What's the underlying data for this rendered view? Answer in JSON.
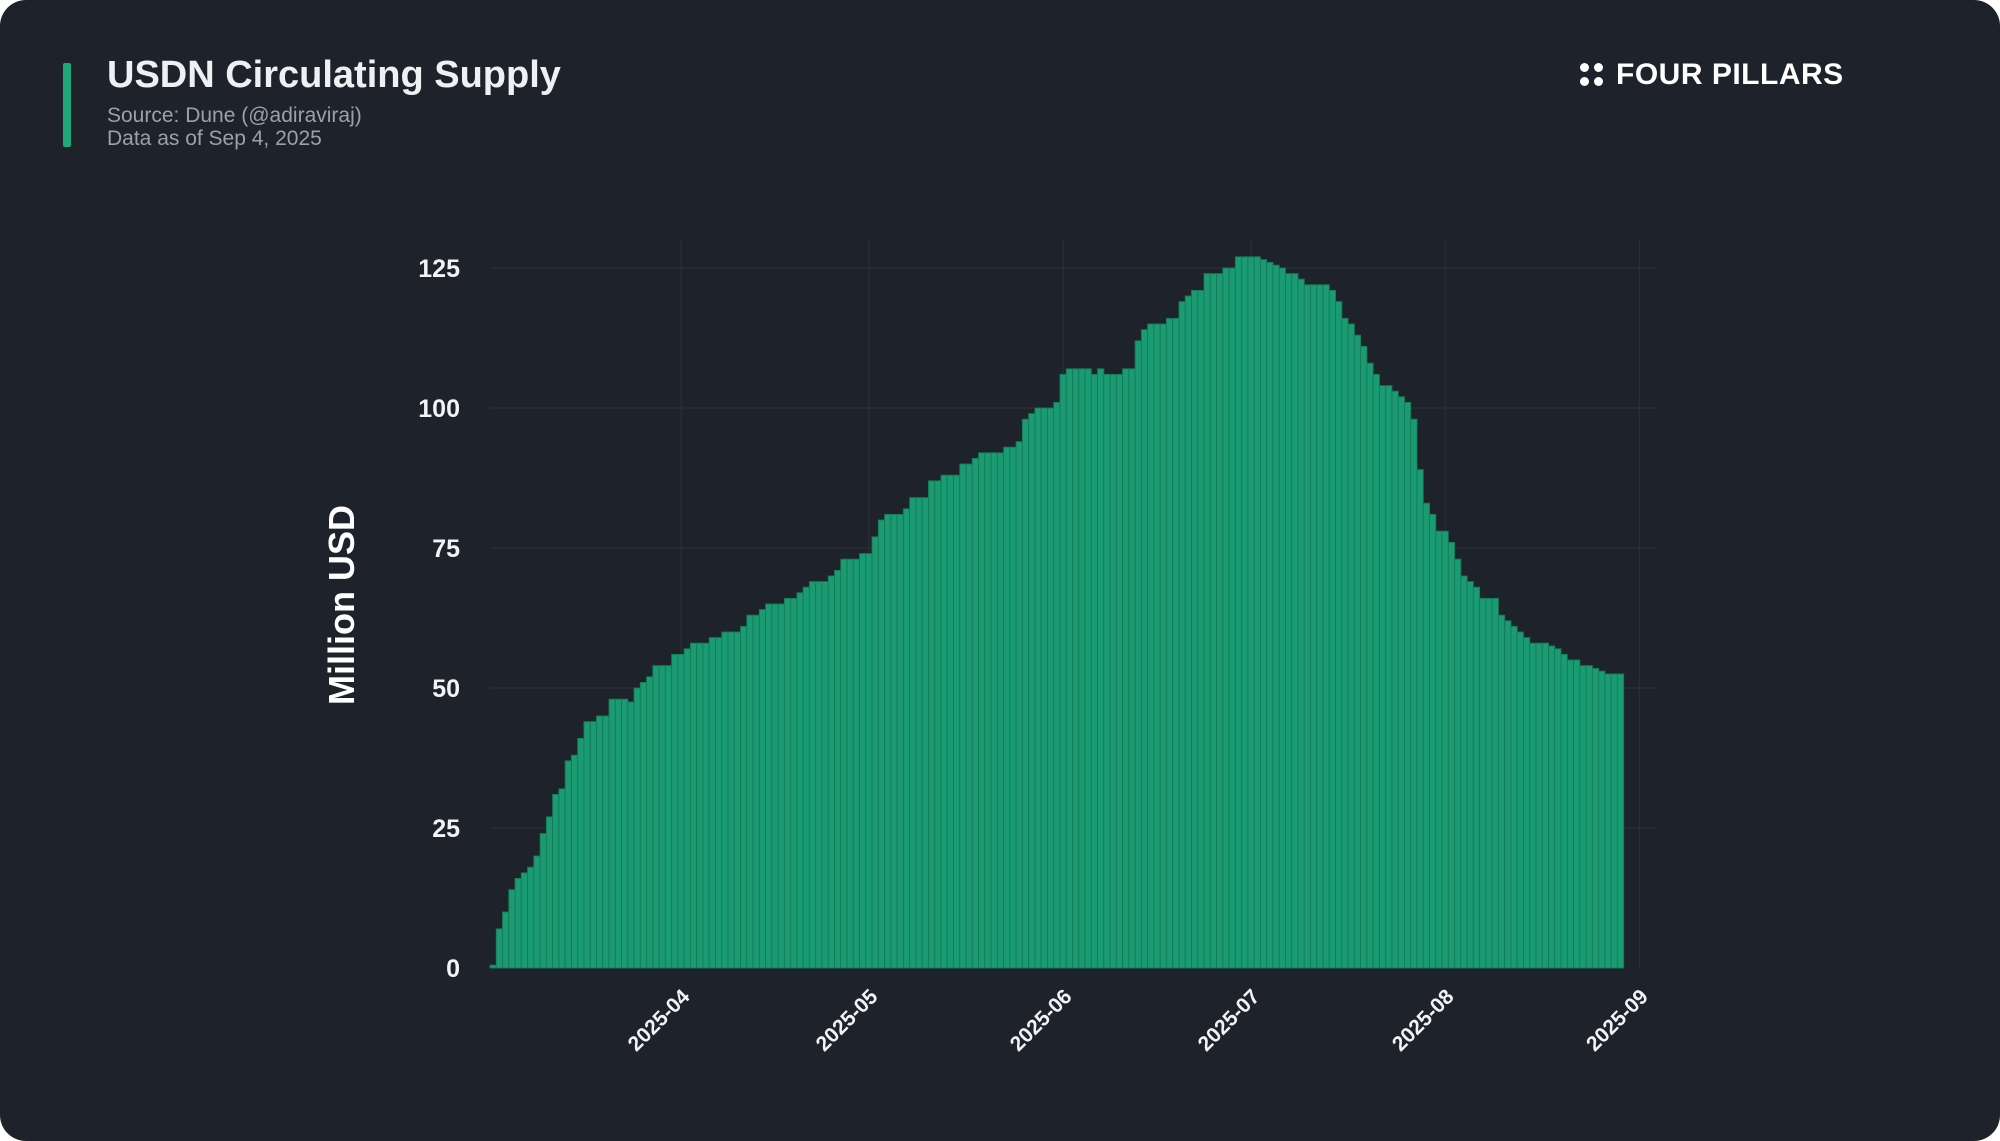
{
  "header": {
    "title": "USDN Circulating Supply",
    "source": "Source: Dune (@adiraviraj)",
    "as_of": "Data as of Sep 4, 2025"
  },
  "brand": {
    "name": "FOUR PILLARS"
  },
  "colors": {
    "background": "#1e222b",
    "bar": "#1b9b72",
    "bar_edge": "#147a58",
    "accent": "#1fa97a",
    "grid": "#2c313b"
  },
  "chart_data": {
    "type": "bar",
    "title": "USDN Circulating Supply",
    "xlabel": "",
    "ylabel": "Million USD",
    "ylim": [
      0,
      130
    ],
    "yticks": [
      0,
      25,
      50,
      75,
      100,
      125
    ],
    "ytick_labels": [
      "0",
      "25",
      "50",
      "75",
      "100",
      "125"
    ],
    "xticks": [
      "2025-04-01",
      "2025-05-01",
      "2025-06-01",
      "2025-07-01",
      "2025-08-01",
      "2025-09-01"
    ],
    "xtick_labels": [
      "2025-04",
      "2025-05",
      "2025-06",
      "2025-07",
      "2025-08",
      "2025-09"
    ],
    "grid": true,
    "x_start": "2025-03-02",
    "x_end": "2025-09-03",
    "values": [
      0.5,
      7,
      10,
      14,
      16,
      17,
      18,
      20,
      24,
      27,
      31,
      32,
      37,
      38,
      41,
      44,
      44,
      45,
      45,
      48,
      48,
      48,
      47.5,
      50,
      51,
      52,
      54,
      54,
      54,
      56,
      56,
      57,
      58,
      58,
      58,
      59,
      59,
      60,
      60,
      60,
      61,
      63,
      63,
      64,
      65,
      65,
      65,
      66,
      66,
      67,
      68,
      69,
      69,
      69,
      70,
      71,
      73,
      73,
      73,
      74,
      74,
      77,
      80,
      81,
      81,
      81,
      82,
      84,
      84,
      84,
      87,
      87,
      88,
      88,
      88,
      90,
      90,
      91,
      92,
      92,
      92,
      92,
      93,
      93,
      94,
      98,
      99,
      100,
      100,
      100,
      101,
      106,
      107,
      107,
      107,
      107,
      106,
      107,
      106,
      106,
      106,
      107,
      107,
      112,
      114,
      115,
      115,
      115,
      116,
      116,
      119,
      120,
      121,
      121,
      124,
      124,
      124,
      125,
      125,
      127,
      127,
      127,
      127,
      126.5,
      126,
      125.5,
      125,
      124,
      124,
      123,
      122,
      122,
      122,
      122,
      121,
      119,
      116,
      115,
      113,
      111,
      108,
      106,
      104,
      104,
      103,
      102,
      101,
      98,
      89,
      83,
      81,
      78,
      78,
      76,
      73,
      70,
      69,
      68,
      66,
      66,
      66,
      63,
      62,
      61,
      60,
      59,
      58,
      58,
      58,
      57.5,
      57,
      56,
      55,
      55,
      54,
      54,
      53.5,
      53,
      52.5,
      52.5,
      52.5
    ]
  }
}
